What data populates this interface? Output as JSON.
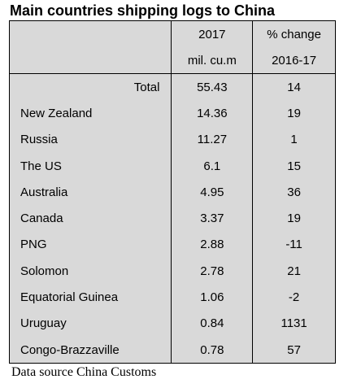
{
  "title": "Main countries shipping logs to China",
  "chart_data": {
    "type": "table",
    "header": [
      [
        "",
        "2017",
        "% change"
      ],
      [
        "",
        "mil. cu.m",
        "2016-17"
      ]
    ],
    "rows": [
      {
        "country": "Total",
        "volume_2017": "55.43",
        "change": "14"
      },
      {
        "country": "New Zealand",
        "volume_2017": "14.36",
        "change": "19"
      },
      {
        "country": "Russia",
        "volume_2017": "11.27",
        "change": "1"
      },
      {
        "country": "The US",
        "volume_2017": "6.1",
        "change": "15"
      },
      {
        "country": "Australia",
        "volume_2017": "4.95",
        "change": "36"
      },
      {
        "country": "Canada",
        "volume_2017": "3.37",
        "change": "19"
      },
      {
        "country": "PNG",
        "volume_2017": "2.88",
        "change": "-11"
      },
      {
        "country": "Solomon",
        "volume_2017": "2.78",
        "change": "21"
      },
      {
        "country": "Equatorial Guinea",
        "volume_2017": "1.06",
        "change": "-2"
      },
      {
        "country": "Uruguay",
        "volume_2017": "0.84",
        "change": "1131"
      },
      {
        "country": "Congo-Brazzaville",
        "volume_2017": "0.78",
        "change": "57"
      }
    ]
  },
  "source": "Data source China Customs"
}
